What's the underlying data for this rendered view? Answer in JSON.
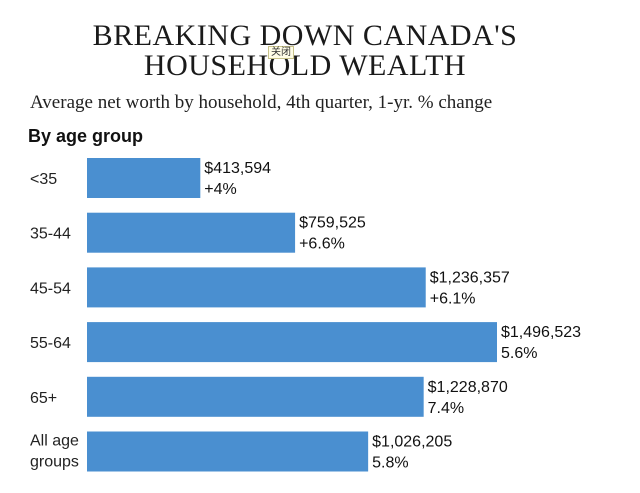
{
  "tooltip": "关闭",
  "chart_data": {
    "type": "bar",
    "orientation": "horizontal",
    "title_line1": "BREAKING DOWN CANADA'S",
    "title_line2": "HOUSEHOLD WEALTH",
    "subtitle": "Average net worth by household, 4th quarter, 1-yr. % change",
    "section": "By age group",
    "categories": [
      [
        "<35"
      ],
      [
        "35-44"
      ],
      [
        "45-54"
      ],
      [
        "55-64"
      ],
      [
        "65+"
      ],
      [
        "All age",
        "groups"
      ]
    ],
    "values": [
      413594,
      759525,
      1236357,
      1496523,
      1228870,
      1026205
    ],
    "value_labels": [
      "$413,594",
      "$759,525",
      "$1,236,357",
      "$1,496,523",
      "$1,228,870",
      "$1,026,205"
    ],
    "change_labels": [
      "+4%",
      "+6.6%",
      "+6.1%",
      "5.6%",
      "7.4%",
      "5.8%"
    ],
    "xlim": [
      0,
      1496523
    ],
    "bar_color": "#4a8fd0"
  }
}
